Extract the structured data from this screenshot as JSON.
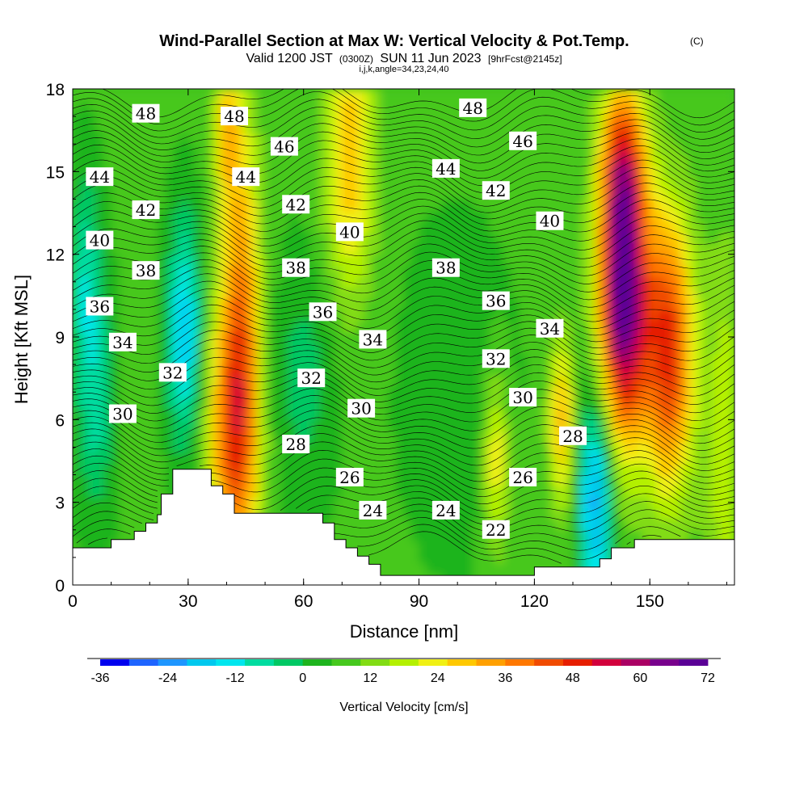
{
  "title": {
    "main": "Wind-Parallel Section at Max W: Vertical Velocity & Pot.Temp.",
    "copyright": "(C)",
    "valid_prefix": "Valid 1200 JST",
    "valid_utc": "(0300Z)",
    "valid_date": "SUN 11 Jun 2023",
    "forecast": "[9hrFcst@2145z]",
    "indices": "i,j,k,angle=34,23,24,40"
  },
  "colorbar": {
    "title": "Vertical Velocity [cm/s]",
    "labels": [
      "-36",
      "-24",
      "-12",
      "0",
      "12",
      "24",
      "36",
      "48",
      "60",
      "72"
    ],
    "colors": [
      "#0000ee",
      "#1e64ff",
      "#1e96ff",
      "#00c8ee",
      "#00e6ee",
      "#00dca0",
      "#00c864",
      "#1eb41e",
      "#46c81e",
      "#82dc14",
      "#b4f000",
      "#f0f014",
      "#ffc800",
      "#ffa000",
      "#ff7800",
      "#f04b00",
      "#e61e00",
      "#d2003c",
      "#aa0064",
      "#78008c",
      "#5a0096"
    ]
  },
  "chart_data": {
    "type": "heatmap",
    "xlabel": "Distance [nm]",
    "ylabel": "Height [Kft MSL]",
    "xlim": [
      0,
      172
    ],
    "ylim": [
      0,
      18
    ],
    "xticks": [
      0,
      30,
      60,
      90,
      120,
      150
    ],
    "yticks": [
      0,
      3,
      6,
      9,
      12,
      15,
      18
    ],
    "field": "Vertical Velocity [cm/s]",
    "color_range": [
      -36,
      72
    ],
    "color_interval": 6,
    "contour_field": "Potential Temperature",
    "contour_labels": [
      {
        "text": "48",
        "x": 19,
        "y": 17.1
      },
      {
        "text": "48",
        "x": 42,
        "y": 17.0
      },
      {
        "text": "48",
        "x": 104,
        "y": 17.3
      },
      {
        "text": "46",
        "x": 55,
        "y": 15.9
      },
      {
        "text": "46",
        "x": 117,
        "y": 16.1
      },
      {
        "text": "44",
        "x": 7,
        "y": 14.8
      },
      {
        "text": "44",
        "x": 45,
        "y": 14.8
      },
      {
        "text": "44",
        "x": 97,
        "y": 15.1
      },
      {
        "text": "42",
        "x": 19,
        "y": 13.6
      },
      {
        "text": "42",
        "x": 58,
        "y": 13.8
      },
      {
        "text": "42",
        "x": 110,
        "y": 14.3
      },
      {
        "text": "40",
        "x": 7,
        "y": 12.5
      },
      {
        "text": "40",
        "x": 72,
        "y": 12.8
      },
      {
        "text": "40",
        "x": 124,
        "y": 13.2
      },
      {
        "text": "38",
        "x": 19,
        "y": 11.4
      },
      {
        "text": "38",
        "x": 58,
        "y": 11.5
      },
      {
        "text": "38",
        "x": 97,
        "y": 11.5
      },
      {
        "text": "36",
        "x": 7,
        "y": 10.1
      },
      {
        "text": "36",
        "x": 65,
        "y": 9.9
      },
      {
        "text": "36",
        "x": 110,
        "y": 10.3
      },
      {
        "text": "34",
        "x": 13,
        "y": 8.8
      },
      {
        "text": "34",
        "x": 78,
        "y": 8.9
      },
      {
        "text": "34",
        "x": 124,
        "y": 9.3
      },
      {
        "text": "32",
        "x": 26,
        "y": 7.7
      },
      {
        "text": "32",
        "x": 62,
        "y": 7.5
      },
      {
        "text": "32",
        "x": 110,
        "y": 8.2
      },
      {
        "text": "30",
        "x": 13,
        "y": 6.2
      },
      {
        "text": "30",
        "x": 75,
        "y": 6.4
      },
      {
        "text": "30",
        "x": 117,
        "y": 6.8
      },
      {
        "text": "28",
        "x": 58,
        "y": 5.1
      },
      {
        "text": "28",
        "x": 130,
        "y": 5.4
      },
      {
        "text": "26",
        "x": 72,
        "y": 3.9
      },
      {
        "text": "26",
        "x": 117,
        "y": 3.9
      },
      {
        "text": "24",
        "x": 78,
        "y": 2.7
      },
      {
        "text": "24",
        "x": 97,
        "y": 2.7
      },
      {
        "text": "22",
        "x": 110,
        "y": 2.0
      }
    ],
    "updraft_cores": [
      {
        "x": 143,
        "y": 10.5,
        "peak": 66
      },
      {
        "x": 155,
        "y": 8.5,
        "peak": 42
      },
      {
        "x": 42,
        "y": 5.5,
        "peak": 38
      },
      {
        "x": 72,
        "y": 15.5,
        "peak": 24
      }
    ],
    "downdraft_cores": [
      {
        "x": 136,
        "y": 3.2,
        "peak": -30
      },
      {
        "x": 29,
        "y": 9.2,
        "peak": -24
      },
      {
        "x": 3,
        "y": 11.0,
        "peak": -14
      }
    ],
    "terrain": [
      [
        0,
        1.35
      ],
      [
        10,
        1.35
      ],
      [
        10,
        1.65
      ],
      [
        16,
        1.65
      ],
      [
        16,
        1.95
      ],
      [
        19,
        1.95
      ],
      [
        19,
        2.25
      ],
      [
        22,
        2.25
      ],
      [
        22,
        2.55
      ],
      [
        23,
        2.55
      ],
      [
        23,
        3.3
      ],
      [
        26,
        3.3
      ],
      [
        26,
        4.2
      ],
      [
        36,
        4.2
      ],
      [
        36,
        3.6
      ],
      [
        39,
        3.6
      ],
      [
        39,
        3.3
      ],
      [
        42,
        3.3
      ],
      [
        42,
        2.6
      ],
      [
        65,
        2.6
      ],
      [
        65,
        2.25
      ],
      [
        68,
        2.25
      ],
      [
        68,
        1.65
      ],
      [
        71,
        1.65
      ],
      [
        71,
        1.35
      ],
      [
        74,
        1.35
      ],
      [
        74,
        1.05
      ],
      [
        77,
        1.05
      ],
      [
        77,
        0.75
      ],
      [
        80,
        0.75
      ],
      [
        80,
        0.35
      ],
      [
        120,
        0.35
      ],
      [
        120,
        0.65
      ],
      [
        137,
        0.65
      ],
      [
        137,
        0.95
      ],
      [
        140,
        0.95
      ],
      [
        140,
        1.35
      ],
      [
        146,
        1.35
      ],
      [
        146,
        1.65
      ],
      [
        172,
        1.65
      ]
    ]
  }
}
